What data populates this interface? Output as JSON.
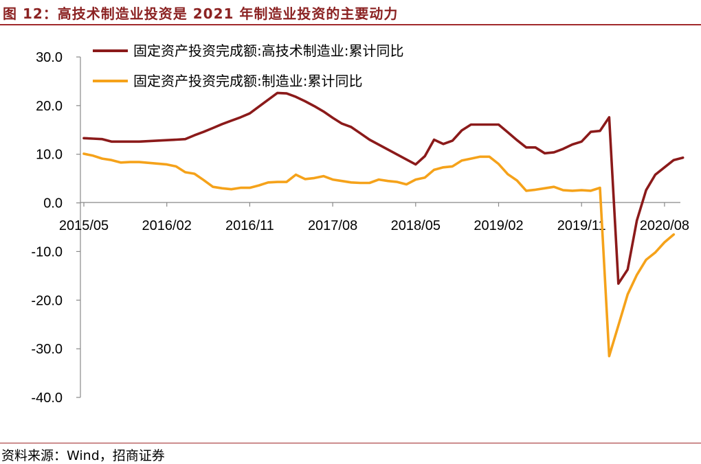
{
  "header": {
    "title": "图 12：高技术制造业投资是 2021 年制造业投资的主要动力"
  },
  "footer": {
    "source": "资料来源：Wind，招商证券"
  },
  "chart_data": {
    "type": "line",
    "title": "图 12：高技术制造业投资是 2021 年制造业投资的主要动力",
    "xlabel": "",
    "ylabel": "",
    "ylim": [
      -40,
      30
    ],
    "yticks": [
      "30.0",
      "20.0",
      "10.0",
      "0.0",
      "-10.0",
      "-20.0",
      "-30.0",
      "-40.0"
    ],
    "xticks": [
      "2015/05",
      "2016/02",
      "2016/11",
      "2017/08",
      "2018/05",
      "2019/02",
      "2019/11",
      "2020/08"
    ],
    "legend_position": "top-left",
    "grid": false,
    "series": [
      {
        "name": "固定资产投资完成额:高技术制造业:累计同比",
        "color": "#8b1a1a",
        "points": [
          [
            "2015/05",
            13.3
          ],
          [
            "2015/06",
            13.2
          ],
          [
            "2015/07",
            13.1
          ],
          [
            "2015/08",
            12.6
          ],
          [
            "2015/09",
            12.6
          ],
          [
            "2015/10",
            12.6
          ],
          [
            "2015/11",
            12.6
          ],
          [
            "2016/02",
            12.9
          ],
          [
            "2016/03",
            13.0
          ],
          [
            "2016/04",
            13.1
          ],
          [
            "2016/05",
            13.9
          ],
          [
            "2016/06",
            14.6
          ],
          [
            "2016/07",
            15.4
          ],
          [
            "2016/08",
            16.2
          ],
          [
            "2016/09",
            16.9
          ],
          [
            "2016/10",
            17.6
          ],
          [
            "2016/11",
            18.4
          ],
          [
            "2017/02",
            22.6
          ],
          [
            "2017/03",
            22.5
          ],
          [
            "2017/04",
            21.8
          ],
          [
            "2017/05",
            20.9
          ],
          [
            "2017/06",
            19.9
          ],
          [
            "2017/07",
            18.8
          ],
          [
            "2017/08",
            17.5
          ],
          [
            "2017/09",
            16.3
          ],
          [
            "2017/10",
            15.6
          ],
          [
            "2017/11",
            14.3
          ],
          [
            "2017/12",
            13.0
          ],
          [
            "2018/05",
            7.9
          ],
          [
            "2018/06",
            9.6
          ],
          [
            "2018/07",
            13.0
          ],
          [
            "2018/08",
            12.1
          ],
          [
            "2018/09",
            12.8
          ],
          [
            "2018/10",
            14.9
          ],
          [
            "2018/11",
            16.1
          ],
          [
            "2018/12",
            16.1
          ],
          [
            "2019/02",
            16.1
          ],
          [
            "2019/03",
            14.5
          ],
          [
            "2019/04",
            12.9
          ],
          [
            "2019/05",
            11.4
          ],
          [
            "2019/06",
            11.4
          ],
          [
            "2019/07",
            10.2
          ],
          [
            "2019/08",
            10.4
          ],
          [
            "2019/09",
            11.1
          ],
          [
            "2019/10",
            12.0
          ],
          [
            "2019/11",
            12.6
          ],
          [
            "2019/12",
            14.6
          ],
          [
            "2020/01",
            14.8
          ],
          [
            "2020/02",
            17.6
          ],
          [
            "2020/03",
            -16.6
          ],
          [
            "2020/04",
            -13.7
          ],
          [
            "2020/05",
            -3.6
          ],
          [
            "2020/06",
            2.6
          ],
          [
            "2020/07",
            5.8
          ],
          [
            "2020/08",
            7.3
          ],
          [
            "2020/09",
            8.8
          ],
          [
            "2020/10",
            9.3
          ]
        ]
      },
      {
        "name": "固定资产投资完成额:制造业:累计同比",
        "color": "#f5a21a",
        "points": [
          [
            "2015/05",
            10.1
          ],
          [
            "2015/06",
            9.7
          ],
          [
            "2015/07",
            9.1
          ],
          [
            "2015/08",
            8.8
          ],
          [
            "2015/09",
            8.3
          ],
          [
            "2015/10",
            8.4
          ],
          [
            "2015/11",
            8.4
          ],
          [
            "2016/02",
            7.9
          ],
          [
            "2016/03",
            7.5
          ],
          [
            "2016/04",
            6.3
          ],
          [
            "2016/05",
            6.0
          ],
          [
            "2016/06",
            4.7
          ],
          [
            "2016/07",
            3.3
          ],
          [
            "2016/08",
            3.0
          ],
          [
            "2016/09",
            2.8
          ],
          [
            "2016/10",
            3.1
          ],
          [
            "2016/11",
            3.1
          ],
          [
            "2016/12",
            3.6
          ],
          [
            "2017/01",
            4.2
          ],
          [
            "2017/02",
            4.3
          ],
          [
            "2017/03",
            4.3
          ],
          [
            "2017/04",
            5.8
          ],
          [
            "2017/05",
            4.9
          ],
          [
            "2017/06",
            5.1
          ],
          [
            "2017/07",
            5.5
          ],
          [
            "2017/08",
            4.8
          ],
          [
            "2017/09",
            4.5
          ],
          [
            "2017/10",
            4.2
          ],
          [
            "2017/11",
            4.1
          ],
          [
            "2017/12",
            4.1
          ],
          [
            "2018/01",
            4.8
          ],
          [
            "2018/02",
            4.5
          ],
          [
            "2018/03",
            4.3
          ],
          [
            "2018/04",
            3.8
          ],
          [
            "2018/05",
            4.8
          ],
          [
            "2018/06",
            5.2
          ],
          [
            "2018/07",
            6.8
          ],
          [
            "2018/08",
            7.3
          ],
          [
            "2018/09",
            7.5
          ],
          [
            "2018/10",
            8.7
          ],
          [
            "2018/11",
            9.1
          ],
          [
            "2018/12",
            9.5
          ],
          [
            "2019/01",
            9.5
          ],
          [
            "2019/02",
            8.0
          ],
          [
            "2019/03",
            5.9
          ],
          [
            "2019/04",
            4.6
          ],
          [
            "2019/05",
            2.5
          ],
          [
            "2019/06",
            2.7
          ],
          [
            "2019/07",
            3.0
          ],
          [
            "2019/08",
            3.3
          ],
          [
            "2019/09",
            2.6
          ],
          [
            "2019/10",
            2.5
          ],
          [
            "2019/11",
            2.6
          ],
          [
            "2019/12",
            2.5
          ],
          [
            "2020/01",
            3.1
          ],
          [
            "2020/02",
            -31.5
          ],
          [
            "2020/03",
            -25.2
          ],
          [
            "2020/04",
            -18.8
          ],
          [
            "2020/05",
            -14.8
          ],
          [
            "2020/06",
            -11.7
          ],
          [
            "2020/07",
            -10.2
          ],
          [
            "2020/08",
            -8.1
          ],
          [
            "2020/09",
            -6.5
          ]
        ]
      }
    ]
  }
}
